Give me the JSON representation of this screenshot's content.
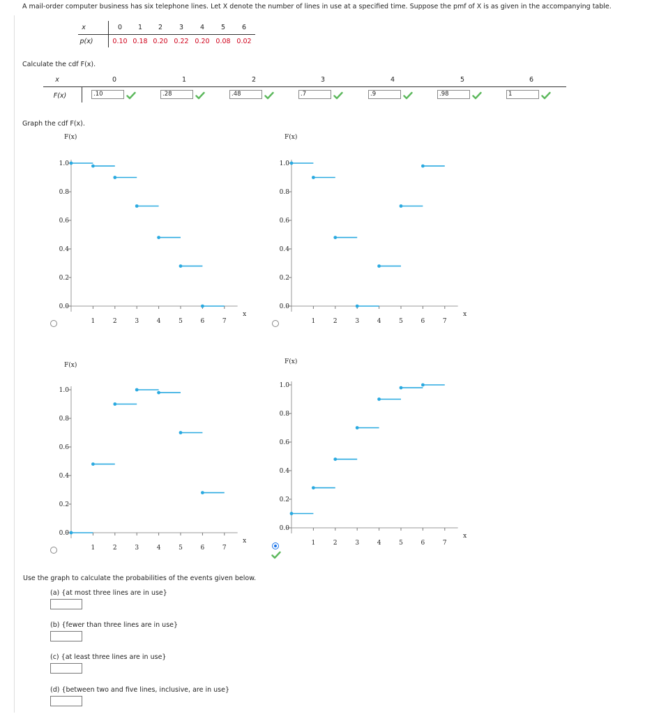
{
  "intro": "A mail-order computer business has six telephone lines. Let X denote the number of lines in use at a specified time. Suppose the pmf of X is as given in the accompanying table.",
  "pmf": {
    "x_label": "x",
    "p_label": "p(x)",
    "x_values": [
      "0",
      "1",
      "2",
      "3",
      "4",
      "5",
      "6"
    ],
    "p_values": [
      "0.10",
      "0.18",
      "0.20",
      "0.22",
      "0.20",
      "0.08",
      "0.02"
    ]
  },
  "cdf_prompt": "Calculate the cdf F(x).",
  "cdf_table": {
    "x_label": "x",
    "f_label": "F(x)",
    "x_values": [
      "0",
      "1",
      "2",
      "3",
      "4",
      "5",
      "6"
    ],
    "answers": [
      ".10",
      ".28",
      ".48",
      ".7",
      ".9",
      ".98",
      "1"
    ]
  },
  "graph_prompt": "Graph the cdf F(x).",
  "graphs": {
    "ylabel": "F(x)",
    "xlabel": "x",
    "yticks": [
      "0.0",
      "0.2",
      "0.4",
      "0.6",
      "0.8",
      "1.0"
    ],
    "xticks": [
      "1",
      "2",
      "3",
      "4",
      "5",
      "6",
      "7"
    ],
    "options": [
      {
        "id": "a",
        "selected": false,
        "steps": [
          [
            0,
            1.0
          ],
          [
            1,
            0.98
          ],
          [
            2,
            0.9
          ],
          [
            3,
            0.7
          ],
          [
            4,
            0.48
          ],
          [
            5,
            0.28
          ],
          [
            6,
            0.0
          ]
        ]
      },
      {
        "id": "b",
        "selected": false,
        "steps": [
          [
            0,
            1.0
          ],
          [
            1,
            0.9
          ],
          [
            2,
            0.48
          ],
          [
            3,
            0.0
          ],
          [
            4,
            0.28
          ],
          [
            5,
            0.7
          ],
          [
            6,
            0.98
          ]
        ]
      },
      {
        "id": "c",
        "selected": false,
        "steps": [
          [
            0,
            0.0
          ],
          [
            1,
            0.48
          ],
          [
            2,
            0.9
          ],
          [
            3,
            1.0
          ],
          [
            4,
            0.98
          ],
          [
            5,
            0.7
          ],
          [
            6,
            0.28
          ]
        ]
      },
      {
        "id": "d",
        "selected": true,
        "steps": [
          [
            0,
            0.1
          ],
          [
            1,
            0.28
          ],
          [
            2,
            0.48
          ],
          [
            3,
            0.7
          ],
          [
            4,
            0.9
          ],
          [
            5,
            0.98
          ],
          [
            6,
            1.0
          ]
        ]
      }
    ]
  },
  "use_graph_prompt": "Use the graph to calculate the probabilities of the events given below.",
  "questions": [
    {
      "label": "(a) {at most three lines are in use}"
    },
    {
      "label": "(b) {fewer than three lines are in use}"
    },
    {
      "label": "(c) {at least three lines are in use}"
    },
    {
      "label": "(d) {between two and five lines, inclusive, are in use}"
    }
  ],
  "colors": {
    "accent": "#29a9e0",
    "check": "#5cb85c",
    "red": "#d0021b",
    "radio": "#1a73e8"
  }
}
